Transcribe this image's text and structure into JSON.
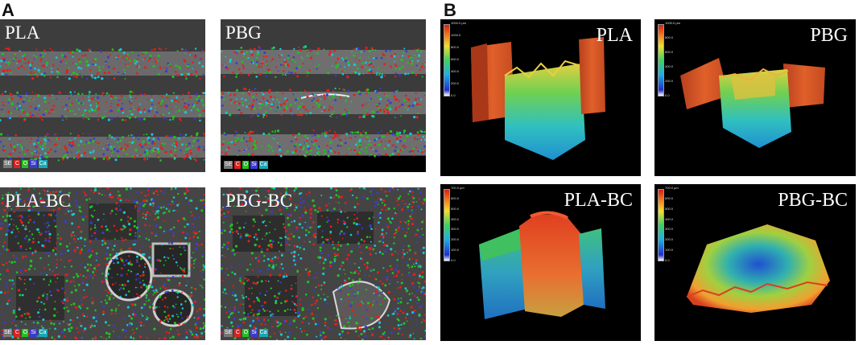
{
  "panels": {
    "a": {
      "letter": "A",
      "tiles": [
        {
          "label": "PLA",
          "legend": [
            "SE",
            "C",
            "O",
            "Si",
            "Ca"
          ]
        },
        {
          "label": "PBG",
          "legend": [
            "SE",
            "C",
            "O",
            "Si",
            "Ca"
          ]
        },
        {
          "label": "PLA-BC",
          "legend": [
            "SE",
            "C",
            "O",
            "Si",
            "Ca"
          ]
        },
        {
          "label": "PBG-BC",
          "legend": [
            "SE",
            "C",
            "O",
            "Si",
            "Ca"
          ]
        }
      ]
    },
    "b": {
      "letter": "B",
      "tiles": [
        {
          "label": "PLA",
          "colorbar_ticks": [
            "1000.0 µm",
            "1000.0",
            "800.0",
            "600.0",
            "400.0",
            "200.0",
            "0.0"
          ]
        },
        {
          "label": "PBG",
          "colorbar_ticks": [
            "1000.0 µm",
            "800.0",
            "600.0",
            "400.0",
            "200.0",
            "0.0"
          ]
        },
        {
          "label": "PLA-BC",
          "colorbar_ticks": [
            "700.0 µm",
            "600.0",
            "500.0",
            "400.0",
            "300.0",
            "200.0",
            "100.0",
            "0.0"
          ]
        },
        {
          "label": "PBG-BC",
          "colorbar_ticks": [
            "700.0 µm",
            "600.0",
            "500.0",
            "400.0",
            "300.0",
            "200.0",
            "100.0",
            "0.0"
          ]
        }
      ]
    }
  },
  "colors": {
    "sem_background": "#3e3e3e",
    "sem_strut": "#b4b4b4",
    "topo_background": "#000000",
    "element_C": "#e02020",
    "element_O": "#22c022",
    "element_Si": "#3b3bd0",
    "element_Ca": "#19c7d6",
    "element_SE": "#e8e8e8"
  }
}
